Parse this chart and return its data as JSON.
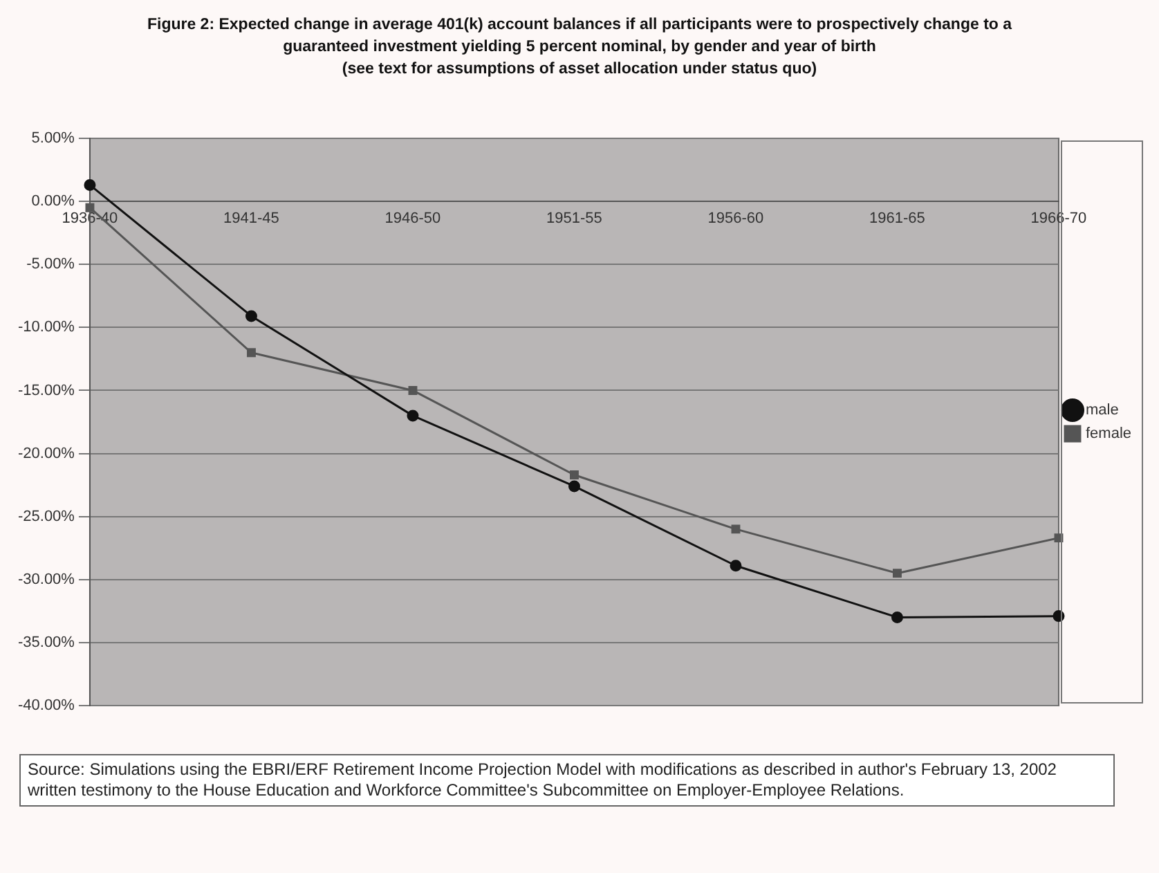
{
  "chart_data": {
    "type": "line",
    "title": "Figure 2: Expected change in average 401(k) account balances if all participants were to prospectively change to a guaranteed investment yielding 5 percent nominal, by gender and year of birth",
    "subtitle": "(see text for assumptions of asset allocation under status quo)",
    "categories": [
      "1936-40",
      "1941-45",
      "1946-50",
      "1951-55",
      "1956-60",
      "1961-65",
      "1966-70"
    ],
    "series": [
      {
        "name": "male",
        "color": "#111111",
        "marker": "circle",
        "values": [
          1.3,
          -9.1,
          -17.0,
          -22.6,
          -28.9,
          -33.0,
          -32.9
        ]
      },
      {
        "name": "female",
        "color": "#555555",
        "marker": "square",
        "values": [
          -0.5,
          -12.0,
          -15.0,
          -21.7,
          -26.0,
          -29.5,
          -26.7
        ]
      }
    ],
    "ylim": [
      -40,
      5
    ],
    "yticks": [
      {
        "value": 5,
        "label": "5.00%"
      },
      {
        "value": 0,
        "label": "0.00%"
      },
      {
        "value": -5,
        "label": "-5.00%"
      },
      {
        "value": -10,
        "label": "-10.00%"
      },
      {
        "value": -15,
        "label": "-15.00%"
      },
      {
        "value": -20,
        "label": "-20.00%"
      },
      {
        "value": -25,
        "label": "-25.00%"
      },
      {
        "value": -30,
        "label": "-30.00%"
      },
      {
        "value": -35,
        "label": "-35.00%"
      },
      {
        "value": -40,
        "label": "-40.00%"
      }
    ],
    "grid": "y",
    "legend": "right",
    "annotations": [
      "Source: Simulations using the EBRI/ERF Retirement Income Projection Model with modifications as described in author's February 13, 2002 written testimony to the House Education and Workforce Committee's Subcommittee on Employer-Employee Relations."
    ]
  }
}
